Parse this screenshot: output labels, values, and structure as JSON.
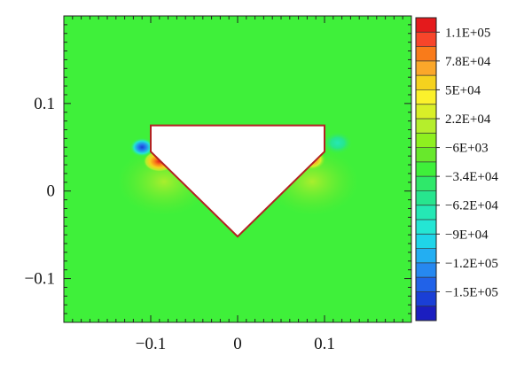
{
  "chart_data": {
    "type": "heatmap",
    "title": "",
    "xlabel": "",
    "ylabel": "",
    "xlim": [
      -0.2,
      0.2
    ],
    "ylim": [
      -0.15,
      0.2
    ],
    "x_ticks": [
      -0.1,
      0,
      0.1
    ],
    "y_ticks": [
      -0.1,
      0,
      0.1
    ],
    "x_tick_labels": [
      "−0.1",
      "0",
      "0.1"
    ],
    "y_tick_labels": [
      "−0.1",
      "0",
      "0.1"
    ],
    "background_value": -6000,
    "obstacle": {
      "polygon": [
        [
          -0.1,
          0.075
        ],
        [
          0.1,
          0.075
        ],
        [
          0.1,
          0.045
        ],
        [
          0.0,
          -0.052
        ],
        [
          -0.1,
          0.045
        ]
      ],
      "fill": "#ffffff",
      "outline": "#b22222"
    },
    "colorbar": {
      "labels": [
        "1.1E+05",
        "7.8E+04",
        "5E+04",
        "2.2E+04",
        "−6E+03",
        "−3.4E+04",
        "−6.2E+04",
        "−9E+04",
        "−1.2E+05",
        "−1.5E+05"
      ],
      "colors": [
        "#e41a1c",
        "#f7452a",
        "#f97b1a",
        "#fba72a",
        "#f5d21e",
        "#fbf12c",
        "#d9ef28",
        "#b5ee2c",
        "#8ef01f",
        "#68e82c",
        "#3ff03a",
        "#2fe86a",
        "#27e58e",
        "#25e8b5",
        "#24e6d4",
        "#1fd5e9",
        "#23aef2",
        "#2688f0",
        "#2162e8",
        "#1a3fd6",
        "#1b1ec0"
      ]
    },
    "hotspots": [
      {
        "x": -0.11,
        "y": 0.05,
        "value": -150000
      },
      {
        "x": -0.09,
        "y": 0.034,
        "value": 110000
      },
      {
        "x": 0.085,
        "y": 0.036,
        "value": 78000
      },
      {
        "x": 0.115,
        "y": 0.055,
        "value": -62000
      }
    ],
    "colors": {
      "background": "#3ff03a",
      "frame": "#222222",
      "obstacle_outline": "#b22222"
    }
  }
}
